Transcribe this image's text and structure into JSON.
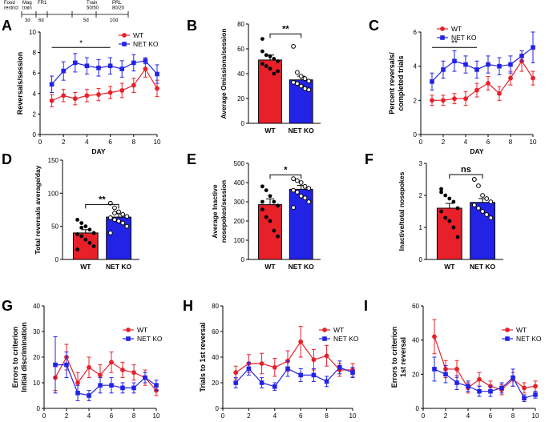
{
  "figure": {
    "timeline": {
      "stages": [
        {
          "label": "Food\nrestrict",
          "duration": ""
        },
        {
          "label": "Mag\ntrain",
          "duration": "3d"
        },
        {
          "label": "FR1",
          "duration": "6d"
        },
        {
          "label": "Train\n50/50",
          "duration": "5d"
        },
        {
          "label": "PRL\n80/20",
          "duration": "10d"
        }
      ]
    },
    "colors": {
      "wt": "#e8202a",
      "ko": "#2323e6",
      "axis": "#000000",
      "label": "#000000"
    }
  },
  "chart_data": [
    {
      "id": "A",
      "panel_label": "A",
      "type": "line",
      "xlabel": "DAY",
      "ylabel": "Reversals/session",
      "xlim": [
        0,
        10
      ],
      "ylim": [
        0,
        10
      ],
      "xticks": [
        0,
        2,
        4,
        6,
        8,
        10
      ],
      "yticks": [
        0,
        2,
        4,
        6,
        8,
        10
      ],
      "legend": "top-right",
      "significance": {
        "label": "*",
        "x_from": 1,
        "x_to": 6,
        "y": 8.5
      },
      "series": [
        {
          "name": "WT",
          "color": "#e8202a",
          "marker": "circle",
          "x": [
            1,
            2,
            3,
            4,
            5,
            6,
            7,
            8,
            9,
            10
          ],
          "values": [
            3.3,
            3.8,
            3.5,
            3.8,
            3.9,
            4.1,
            4.3,
            4.8,
            6.4,
            4.5
          ],
          "errors": [
            0.6,
            0.6,
            0.6,
            0.6,
            0.6,
            0.6,
            0.7,
            0.7,
            0.8,
            0.8
          ]
        },
        {
          "name": "NET KO",
          "color": "#2323e6",
          "marker": "square",
          "x": [
            1,
            2,
            3,
            4,
            5,
            6,
            7,
            8,
            9,
            10
          ],
          "values": [
            4.9,
            6.2,
            7.0,
            6.7,
            6.5,
            6.7,
            6.4,
            7.0,
            7.2,
            5.9
          ],
          "errors": [
            0.8,
            0.9,
            0.9,
            0.8,
            0.8,
            0.8,
            0.8,
            0.8,
            0.3,
            0.9
          ]
        }
      ]
    },
    {
      "id": "B",
      "panel_label": "B",
      "type": "bar",
      "xlabel": "",
      "ylabel": "Average Omissions/session",
      "ylim": [
        0,
        80
      ],
      "yticks": [
        0,
        20,
        40,
        60,
        80
      ],
      "categories": [
        "WT",
        "NET KO"
      ],
      "values": [
        51,
        35
      ],
      "errors": [
        4,
        3
      ],
      "significance": {
        "label": "**",
        "y": 72
      },
      "points": [
        [
          58,
          55,
          54,
          52,
          50,
          48,
          46,
          44,
          40,
          42,
          68
        ],
        [
          62,
          41,
          38,
          36,
          34,
          33,
          32,
          30,
          28,
          27
        ]
      ]
    },
    {
      "id": "C",
      "panel_label": "C",
      "type": "line",
      "xlabel": "DAY",
      "ylabel": "Percent reversals/\ncompleted trials",
      "xlim": [
        0,
        10
      ],
      "ylim": [
        0,
        6
      ],
      "xticks": [
        0,
        2,
        4,
        6,
        8,
        10
      ],
      "yticks": [
        0,
        2,
        4,
        6
      ],
      "legend": "top-left",
      "significance": {
        "label": "**",
        "x_from": 1,
        "x_to": 5,
        "y": 5.1
      },
      "series": [
        {
          "name": "WT",
          "color": "#e8202a",
          "marker": "circle",
          "x": [
            1,
            2,
            3,
            4,
            5,
            6,
            7,
            8,
            9,
            10
          ],
          "values": [
            2.0,
            2.0,
            2.1,
            2.1,
            2.6,
            3.0,
            2.4,
            3.3,
            4.3,
            3.3
          ],
          "errors": [
            0.3,
            0.3,
            0.3,
            0.4,
            0.4,
            0.4,
            0.4,
            0.4,
            0.6,
            0.4
          ]
        },
        {
          "name": "NET KO",
          "color": "#2323e6",
          "marker": "square",
          "x": [
            1,
            2,
            3,
            4,
            5,
            6,
            7,
            8,
            9,
            10
          ],
          "values": [
            3.1,
            3.8,
            4.3,
            4.1,
            3.8,
            4.1,
            4.0,
            4.1,
            4.6,
            5.1
          ],
          "errors": [
            0.5,
            0.5,
            0.6,
            0.5,
            0.5,
            0.5,
            0.5,
            0.5,
            0.3,
            0.9
          ]
        }
      ]
    },
    {
      "id": "D",
      "panel_label": "D",
      "type": "bar",
      "xlabel": "",
      "ylabel": "Total reversals average/day",
      "ylim": [
        0,
        150
      ],
      "yticks": [
        0,
        50,
        100,
        150
      ],
      "categories": [
        "WT",
        "NET KO"
      ],
      "values": [
        40,
        64
      ],
      "errors": [
        5,
        5
      ],
      "significance": {
        "label": "**",
        "y": 83
      },
      "points": [
        [
          60,
          55,
          50,
          45,
          40,
          38,
          35,
          30,
          25,
          20,
          15,
          48
        ],
        [
          85,
          78,
          72,
          68,
          65,
          63,
          60,
          58,
          55,
          50,
          40,
          70
        ]
      ]
    },
    {
      "id": "E",
      "panel_label": "E",
      "type": "bar",
      "xlabel": "",
      "ylabel": "Average Inactive\nnosepokes/session",
      "ylim": [
        0,
        500
      ],
      "yticks": [
        0,
        100,
        200,
        300,
        400,
        500
      ],
      "categories": [
        "WT",
        "NET KO"
      ],
      "values": [
        285,
        365
      ],
      "errors": [
        30,
        20
      ],
      "significance": {
        "label": "*",
        "y": 440
      },
      "points": [
        [
          380,
          360,
          330,
          300,
          280,
          260,
          220,
          200,
          150,
          120,
          300
        ],
        [
          420,
          410,
          400,
          380,
          370,
          360,
          350,
          330,
          320,
          300,
          270
        ]
      ]
    },
    {
      "id": "F",
      "panel_label": "F",
      "type": "bar",
      "xlabel": "",
      "ylabel": "Inactive/total nosepokes",
      "ylim": [
        0,
        3
      ],
      "yticks": [
        0,
        1,
        2,
        3
      ],
      "categories": [
        "WT",
        "NET KO"
      ],
      "values": [
        1.6,
        1.78
      ],
      "errors": [
        0.15,
        0.12
      ],
      "significance": {
        "label": "ns",
        "y": 2.65
      },
      "points": [
        [
          2.2,
          2.0,
          1.9,
          1.8,
          1.6,
          1.5,
          1.3,
          1.2,
          1.0,
          0.7,
          2.1
        ],
        [
          2.5,
          2.3,
          2.0,
          1.9,
          1.8,
          1.7,
          1.6,
          1.5,
          1.4,
          1.3,
          2.5
        ]
      ]
    },
    {
      "id": "G",
      "panel_label": "G",
      "type": "line",
      "xlabel": "DAY",
      "ylabel": "Errors to criterion\nInitial discrimination",
      "xlim": [
        0,
        10
      ],
      "ylim": [
        0,
        40
      ],
      "xticks": [
        0,
        2,
        4,
        6,
        8,
        10
      ],
      "yticks": [
        0,
        10,
        20,
        30,
        40
      ],
      "legend": "top-right",
      "series": [
        {
          "name": "WT",
          "color": "#e8202a",
          "marker": "circle",
          "x": [
            1,
            2,
            3,
            4,
            5,
            6,
            7,
            8,
            9,
            10
          ],
          "values": [
            12,
            20,
            10,
            16,
            13,
            18,
            15,
            14,
            12,
            7
          ],
          "errors": [
            5,
            5,
            4,
            4,
            4,
            4,
            3,
            3,
            3,
            2
          ]
        },
        {
          "name": "NET KO",
          "color": "#2323e6",
          "marker": "square",
          "x": [
            1,
            2,
            3,
            4,
            5,
            6,
            7,
            8,
            9,
            10
          ],
          "values": [
            17,
            17,
            6,
            5,
            9,
            9,
            8,
            8,
            12,
            9
          ],
          "errors": [
            11,
            5,
            3,
            2,
            3,
            3,
            2,
            2,
            2,
            2
          ]
        }
      ]
    },
    {
      "id": "H",
      "panel_label": "H",
      "type": "line",
      "xlabel": "DAY",
      "ylabel": "Trials to 1st reversal",
      "xlim": [
        0,
        10
      ],
      "ylim": [
        0,
        80
      ],
      "xticks": [
        0,
        2,
        4,
        6,
        8,
        10
      ],
      "yticks": [
        0,
        20,
        40,
        60,
        80
      ],
      "legend": "top-right",
      "series": [
        {
          "name": "WT",
          "color": "#e8202a",
          "marker": "circle",
          "x": [
            1,
            2,
            3,
            4,
            5,
            6,
            7,
            8,
            9,
            10
          ],
          "values": [
            28,
            35,
            35,
            32,
            37,
            52,
            38,
            41,
            30,
            30
          ],
          "errors": [
            5,
            7,
            8,
            7,
            8,
            12,
            8,
            8,
            5,
            5
          ]
        },
        {
          "name": "NET KO",
          "color": "#2323e6",
          "marker": "square",
          "x": [
            1,
            2,
            3,
            4,
            5,
            6,
            7,
            8,
            9,
            10
          ],
          "values": [
            20,
            31,
            20,
            17,
            31,
            26,
            26,
            21,
            32,
            28
          ],
          "errors": [
            4,
            5,
            4,
            3,
            6,
            5,
            5,
            4,
            5,
            4
          ]
        }
      ]
    },
    {
      "id": "I",
      "panel_label": "I",
      "type": "line",
      "xlabel": "DAY",
      "ylabel": "Errors to criterion\n1st reversal",
      "xlim": [
        0,
        10
      ],
      "ylim": [
        0,
        60
      ],
      "xticks": [
        0,
        2,
        4,
        6,
        8,
        10
      ],
      "yticks": [
        0,
        20,
        40,
        60
      ],
      "legend": "top-right",
      "series": [
        {
          "name": "WT",
          "color": "#e8202a",
          "marker": "circle",
          "x": [
            1,
            2,
            3,
            4,
            5,
            6,
            7,
            8,
            9,
            10
          ],
          "values": [
            42,
            23,
            23,
            12,
            17,
            13,
            11,
            17,
            12,
            13
          ],
          "errors": [
            10,
            5,
            5,
            3,
            4,
            3,
            3,
            4,
            3,
            3
          ]
        },
        {
          "name": "NET KO",
          "color": "#2323e6",
          "marker": "square",
          "x": [
            1,
            2,
            3,
            4,
            5,
            6,
            7,
            8,
            9,
            10
          ],
          "values": [
            23,
            20,
            15,
            13,
            10,
            10,
            12,
            18,
            6,
            8
          ],
          "errors": [
            7,
            5,
            4,
            3,
            3,
            3,
            3,
            5,
            2,
            2
          ]
        }
      ]
    }
  ]
}
